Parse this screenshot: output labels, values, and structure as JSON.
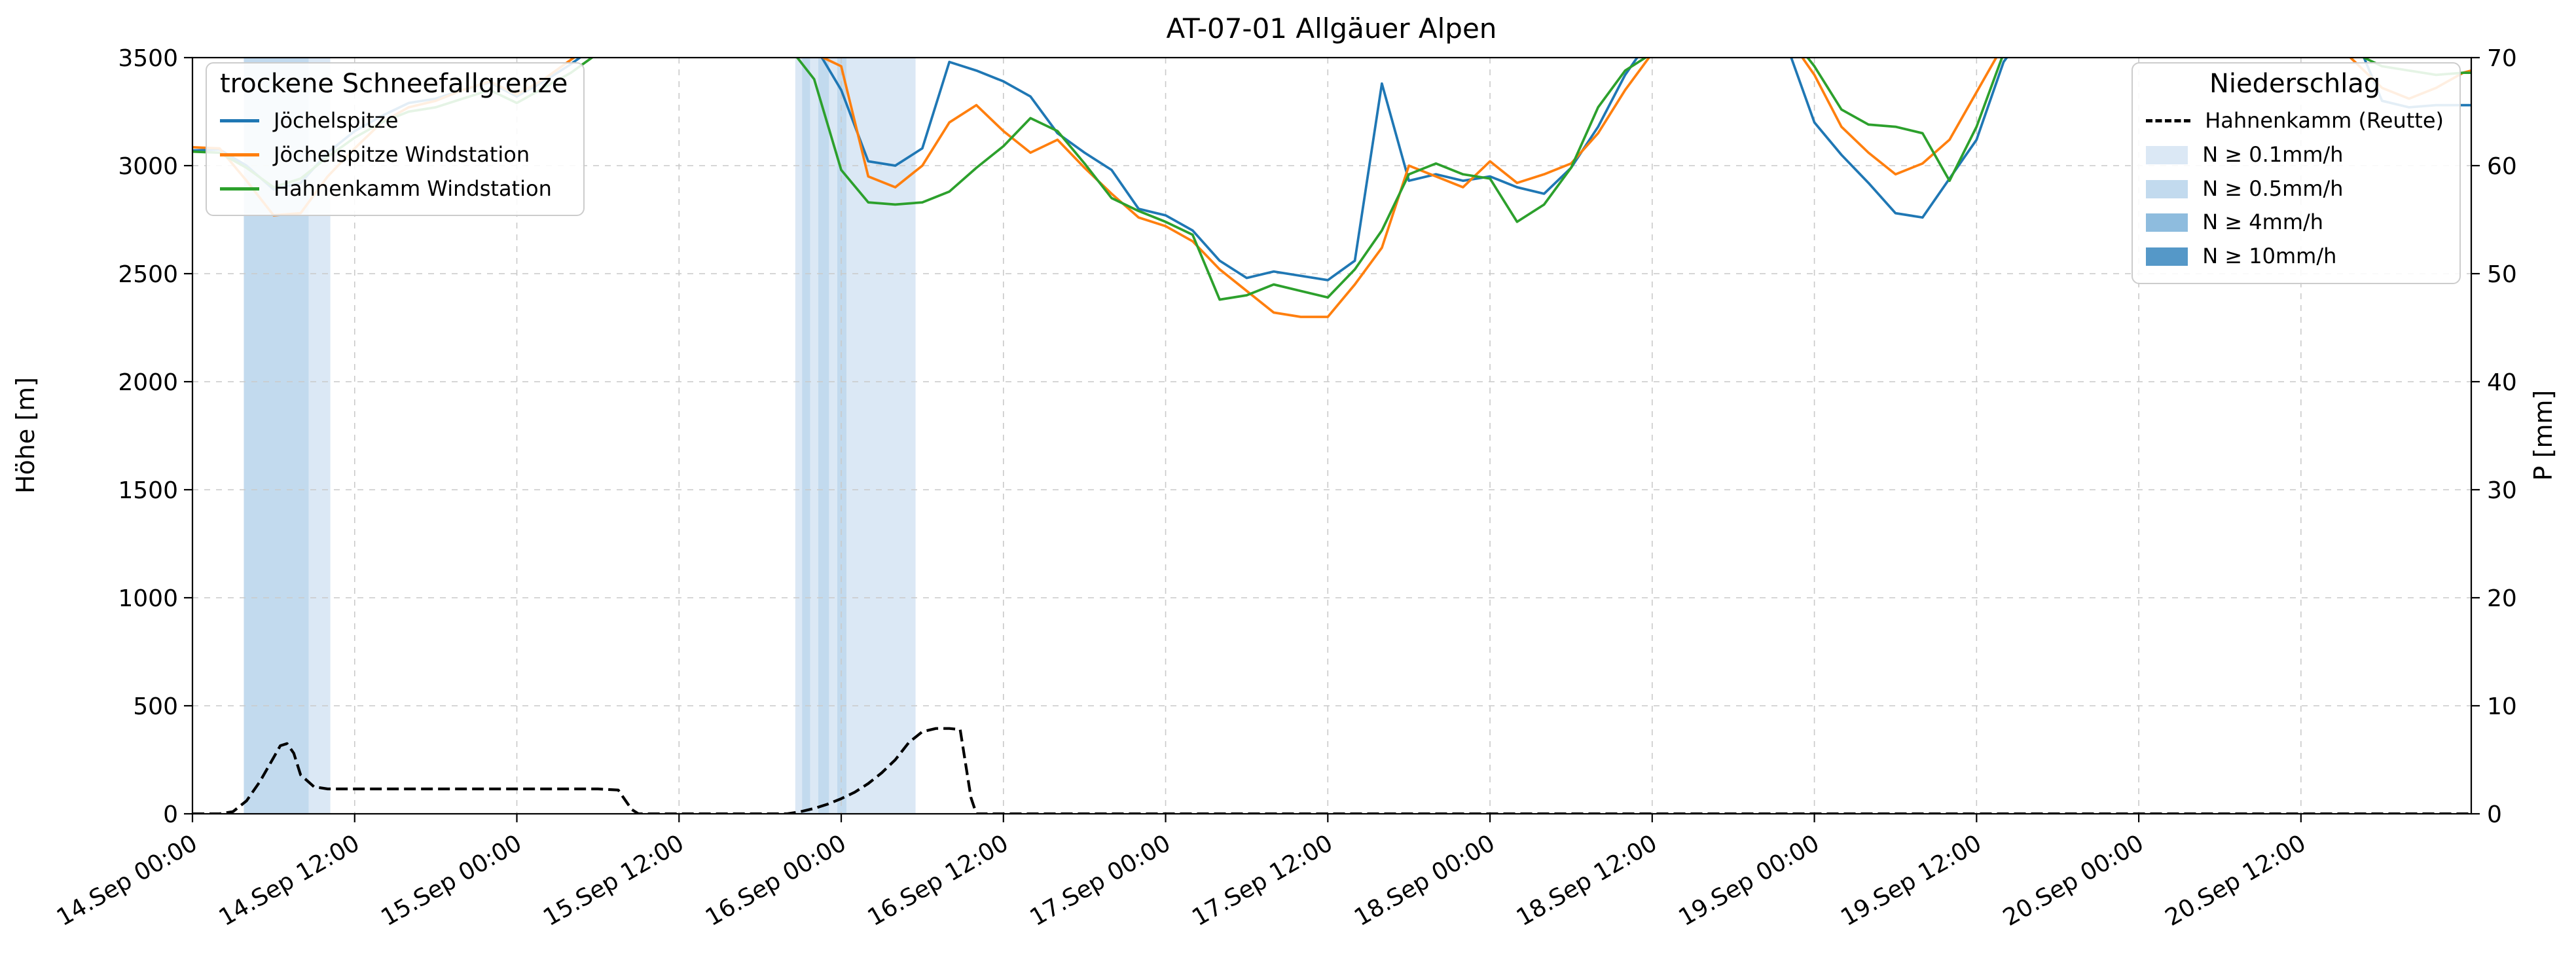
{
  "title": "AT-07-01 Allgäuer Alpen",
  "axes": {
    "y_left": {
      "label": "Höhe [m]",
      "min": 0,
      "max": 3500,
      "ticks": [
        0,
        500,
        1000,
        1500,
        2000,
        2500,
        3000,
        3500
      ]
    },
    "y_right": {
      "label": "P [mm]",
      "min": 0,
      "max": 70,
      "ticks": [
        0,
        10,
        20,
        30,
        40,
        50,
        60,
        70
      ]
    },
    "x": {
      "tick_hours": [
        0,
        12,
        24,
        36,
        48,
        60,
        72,
        84,
        96,
        108,
        120,
        132,
        144,
        156
      ],
      "tick_labels": [
        "14.Sep 00:00",
        "14.Sep 12:00",
        "15.Sep 00:00",
        "15.Sep 12:00",
        "16.Sep 00:00",
        "16.Sep 12:00",
        "17.Sep 00:00",
        "17.Sep 12:00",
        "18.Sep 00:00",
        "18.Sep 12:00",
        "19.Sep 00:00",
        "19.Sep 12:00",
        "20.Sep 00:00",
        "20.Sep 12:00"
      ]
    }
  },
  "legend_snowline": {
    "title": "trockene Schneefallgrenze",
    "items": [
      {
        "label": "Jöchelspitze",
        "color": "#1f77b4"
      },
      {
        "label": "Jöchelspitze Windstation",
        "color": "#ff7f0e"
      },
      {
        "label": "Hahnenkamm Windstation",
        "color": "#2ca02c"
      }
    ]
  },
  "legend_precip": {
    "title": "Niederschlag",
    "line_item": {
      "label": "Hahnenkamm (Reutte)",
      "color": "#000000"
    },
    "band_items": [
      {
        "label": "N ≥ 0.1mm/h",
        "color": "#dbe8f5"
      },
      {
        "label": "N ≥ 0.5mm/h",
        "color": "#c2daee"
      },
      {
        "label": "N ≥ 4mm/h",
        "color": "#8ebcde"
      },
      {
        "label": "N ≥ 10mm/h",
        "color": "#5598c8"
      }
    ]
  },
  "chart_data": {
    "type": "line",
    "title": "AT-07-01 Allgäuer Alpen",
    "x_unit": "hours since 14.Sep 00:00",
    "x_range": [
      0,
      168.6
    ],
    "grid": true,
    "x": [
      0,
      2,
      4,
      6,
      8,
      10,
      12,
      14,
      16,
      18,
      20,
      22,
      24,
      26,
      28,
      30,
      32,
      34,
      36,
      38,
      40,
      42,
      44,
      46,
      48,
      50,
      52,
      54,
      56,
      58,
      60,
      62,
      64,
      66,
      68,
      70,
      72,
      74,
      76,
      78,
      80,
      82,
      84,
      86,
      88,
      90,
      92,
      94,
      96,
      98,
      100,
      102,
      104,
      106,
      108,
      110,
      112,
      114,
      116,
      118,
      120,
      122,
      124,
      126,
      128,
      130,
      132,
      134,
      136,
      138,
      140,
      142,
      144,
      146,
      148,
      150,
      152,
      154,
      156,
      158,
      160,
      162,
      164,
      166,
      168,
      168.6
    ],
    "series": [
      {
        "name": "Jöchelspitze",
        "axis": "left",
        "color": "#1f77b4",
        "dashed": false,
        "values": [
          3070,
          3075,
          3000,
          2890,
          2920,
          3060,
          3160,
          3230,
          3290,
          3310,
          3350,
          3385,
          3320,
          3390,
          3470,
          3560,
          3650,
          3700,
          3720,
          3700,
          3700,
          3680,
          3640,
          3560,
          3350,
          3020,
          3000,
          3080,
          3480,
          3440,
          3390,
          3320,
          3150,
          3060,
          2980,
          2800,
          2770,
          2700,
          2560,
          2480,
          2510,
          2490,
          2470,
          2560,
          3380,
          2930,
          2960,
          2930,
          2950,
          2900,
          2870,
          2990,
          3180,
          3420,
          3600,
          3700,
          3720,
          3700,
          3680,
          3550,
          3200,
          3050,
          2920,
          2780,
          2760,
          2940,
          3120,
          3480,
          3650,
          3700,
          3720,
          3700,
          3700,
          3720,
          3700,
          3700,
          3720,
          3700,
          3700,
          3680,
          3600,
          3300,
          3270,
          3280,
          3280,
          3280
        ]
      },
      {
        "name": "Jöchelspitze Windstation",
        "axis": "left",
        "color": "#ff7f0e",
        "dashed": false,
        "values": [
          3085,
          3080,
          2930,
          2770,
          2780,
          2950,
          3080,
          3200,
          3270,
          3300,
          3350,
          3390,
          3330,
          3400,
          3490,
          3580,
          3650,
          3700,
          3700,
          3690,
          3700,
          3660,
          3600,
          3520,
          3460,
          2950,
          2900,
          3000,
          3200,
          3280,
          3160,
          3060,
          3120,
          2990,
          2870,
          2760,
          2720,
          2650,
          2520,
          2420,
          2320,
          2300,
          2300,
          2450,
          2620,
          3000,
          2950,
          2900,
          3020,
          2920,
          2960,
          3010,
          3150,
          3350,
          3520,
          3650,
          3700,
          3680,
          3650,
          3600,
          3420,
          3180,
          3060,
          2960,
          3010,
          3120,
          3340,
          3560,
          3650,
          3700,
          3680,
          3700,
          3700,
          3690,
          3700,
          3700,
          3680,
          3700,
          3660,
          3600,
          3480,
          3360,
          3310,
          3360,
          3430,
          3440
        ]
      },
      {
        "name": "Hahnenkamm Windstation",
        "axis": "left",
        "color": "#2ca02c",
        "dashed": false,
        "values": [
          3065,
          3060,
          2990,
          2900,
          2940,
          3040,
          3130,
          3200,
          3250,
          3270,
          3310,
          3350,
          3290,
          3360,
          3430,
          3520,
          3620,
          3680,
          3700,
          3690,
          3700,
          3650,
          3560,
          3400,
          2980,
          2830,
          2820,
          2830,
          2880,
          2990,
          3090,
          3220,
          3160,
          3010,
          2850,
          2790,
          2740,
          2680,
          2380,
          2400,
          2450,
          2420,
          2390,
          2520,
          2700,
          2960,
          3010,
          2960,
          2940,
          2740,
          2820,
          2990,
          3270,
          3440,
          3520,
          3640,
          3700,
          3690,
          3660,
          3620,
          3460,
          3260,
          3190,
          3180,
          3150,
          2930,
          3180,
          3520,
          3650,
          3700,
          3690,
          3700,
          3700,
          3700,
          3690,
          3700,
          3700,
          3690,
          3650,
          3600,
          3520,
          3460,
          3440,
          3420,
          3430,
          3430
        ]
      },
      {
        "name": "Hahnenkamm (Reutte)",
        "axis": "right",
        "color": "#000000",
        "dashed": true,
        "x": [
          0,
          2,
          3,
          4,
          5,
          6,
          6.5,
          7,
          7.5,
          8,
          9,
          10,
          12,
          16,
          20,
          24,
          28,
          30,
          31.5,
          32.5,
          33,
          36,
          40,
          44,
          45,
          46,
          47,
          48,
          49,
          50,
          51,
          52,
          53,
          54,
          55,
          56,
          56.8,
          57.6,
          58,
          60,
          72,
          84,
          96,
          108,
          120,
          132,
          144,
          156,
          168.6
        ],
        "values": [
          0,
          0,
          0.2,
          1.2,
          3.0,
          5.2,
          6.3,
          6.5,
          5.6,
          3.6,
          2.5,
          2.3,
          2.3,
          2.3,
          2.3,
          2.3,
          2.3,
          2.3,
          2.2,
          0.4,
          0,
          0,
          0,
          0,
          0.2,
          0.5,
          0.9,
          1.4,
          2.0,
          2.8,
          3.8,
          5.0,
          6.6,
          7.6,
          7.9,
          7.9,
          7.8,
          1.5,
          0,
          0,
          0,
          0,
          0,
          0,
          0,
          0,
          0,
          0,
          0
        ]
      }
    ],
    "precip_bands": [
      {
        "from": 3.8,
        "to": 8.6,
        "intensity": "N ≥ 0.5mm/h",
        "color": "#c2daee"
      },
      {
        "from": 8.6,
        "to": 10.2,
        "intensity": "N ≥ 0.1mm/h",
        "color": "#dbe8f5"
      },
      {
        "from": 44.6,
        "to": 45.1,
        "intensity": "N ≥ 0.1mm/h",
        "color": "#dbe8f5"
      },
      {
        "from": 45.1,
        "to": 45.7,
        "intensity": "N ≥ 0.5mm/h",
        "color": "#c2daee"
      },
      {
        "from": 45.7,
        "to": 46.3,
        "intensity": "N ≥ 0.1mm/h",
        "color": "#dbe8f5"
      },
      {
        "from": 46.3,
        "to": 47.1,
        "intensity": "N ≥ 0.5mm/h",
        "color": "#c2daee"
      },
      {
        "from": 47.1,
        "to": 47.7,
        "intensity": "N ≥ 0.1mm/h",
        "color": "#dbe8f5"
      },
      {
        "from": 47.7,
        "to": 48.4,
        "intensity": "N ≥ 0.5mm/h",
        "color": "#c2daee"
      },
      {
        "from": 48.4,
        "to": 53.5,
        "intensity": "N ≥ 0.1mm/h",
        "color": "#dbe8f5"
      }
    ]
  }
}
